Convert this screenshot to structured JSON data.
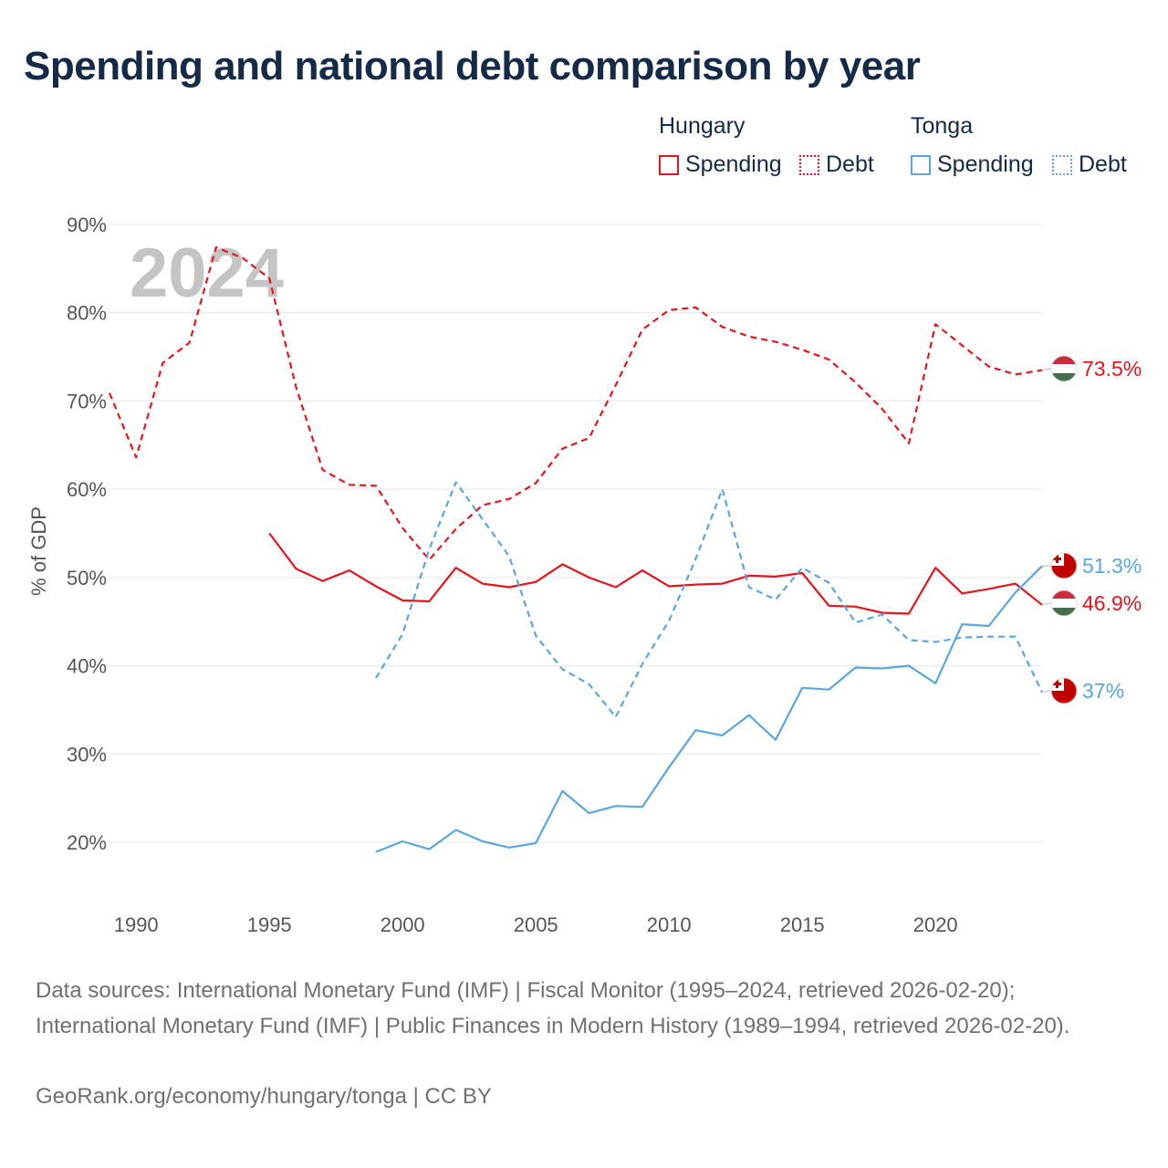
{
  "title": "Spending and national debt comparison by year",
  "legend": {
    "groups": [
      {
        "title": "Hungary",
        "spending_label": "Spending",
        "debt_label": "Debt",
        "color": "#e8141d"
      },
      {
        "title": "Tonga",
        "spending_label": "Spending",
        "debt_label": "Debt",
        "color": "#5aa6e0"
      }
    ]
  },
  "footer": {
    "sources": "Data sources: International Monetary Fund (IMF) | Fiscal Monitor (1995–2024, retrieved 2026-02-20); International Monetary Fund (IMF) | Public Finances in Modern History (1989–1994, retrieved 2026-02-20).",
    "credit": "GeoRank.org/economy/hungary/tonga | CC BY"
  },
  "chart_data": {
    "type": "line",
    "title": "Spending and national debt comparison by year",
    "year_label": "2024",
    "xlabel": "",
    "ylabel": "% of GDP",
    "xlim": [
      1989,
      2024
    ],
    "ylim": [
      13,
      90
    ],
    "x_ticks": [
      1990,
      1995,
      2000,
      2005,
      2010,
      2015,
      2020
    ],
    "y_ticks": [
      20,
      30,
      40,
      50,
      60,
      70,
      80,
      90
    ],
    "y_tick_labels": [
      "20%",
      "30%",
      "40%",
      "50%",
      "60%",
      "70%",
      "80%",
      "90%"
    ],
    "grid": true,
    "series": [
      {
        "name": "Hungary Debt",
        "country": "Hungary",
        "style": "dashed",
        "color": "#e8141d",
        "end_label": "73.5%",
        "x": [
          1989,
          1990,
          1991,
          1992,
          1993,
          1994,
          1995,
          1996,
          1997,
          1998,
          1999,
          2000,
          2001,
          2002,
          2003,
          2004,
          2005,
          2006,
          2007,
          2008,
          2009,
          2010,
          2011,
          2012,
          2013,
          2014,
          2015,
          2016,
          2017,
          2018,
          2019,
          2020,
          2021,
          2022,
          2023,
          2024
        ],
        "y": [
          70.9,
          63.6,
          74.3,
          76.6,
          87.4,
          86.2,
          83.9,
          71.6,
          62.2,
          60.5,
          60.4,
          55.6,
          52.0,
          55.5,
          58.2,
          58.9,
          60.7,
          64.6,
          65.8,
          71.8,
          78.1,
          80.3,
          80.6,
          78.4,
          77.3,
          76.7,
          75.8,
          74.7,
          72.1,
          69.1,
          65.2,
          78.7,
          76.3,
          73.9,
          73.0,
          73.5
        ]
      },
      {
        "name": "Hungary Spending",
        "country": "Hungary",
        "style": "solid",
        "color": "#e8141d",
        "end_label": "46.9%",
        "x": [
          1995,
          1996,
          1997,
          1998,
          1999,
          2000,
          2001,
          2002,
          2003,
          2004,
          2005,
          2006,
          2007,
          2008,
          2009,
          2010,
          2011,
          2012,
          2013,
          2014,
          2015,
          2016,
          2017,
          2018,
          2019,
          2020,
          2021,
          2022,
          2023,
          2024
        ],
        "y": [
          55.0,
          51.0,
          49.6,
          50.8,
          49.0,
          47.4,
          47.3,
          51.1,
          49.3,
          48.9,
          49.5,
          51.5,
          50.0,
          48.9,
          50.8,
          49.0,
          49.2,
          49.3,
          50.2,
          50.1,
          50.5,
          46.8,
          46.7,
          46.0,
          45.9,
          51.1,
          48.2,
          48.7,
          49.3,
          46.9
        ]
      },
      {
        "name": "Tonga Debt",
        "country": "Tonga",
        "style": "dashed",
        "color": "#5aa6e0",
        "end_label": "37%",
        "x": [
          1999,
          2000,
          2001,
          2002,
          2003,
          2004,
          2005,
          2006,
          2007,
          2008,
          2009,
          2010,
          2011,
          2012,
          2013,
          2014,
          2015,
          2016,
          2017,
          2018,
          2019,
          2020,
          2021,
          2022,
          2023,
          2024
        ],
        "y": [
          38.6,
          43.6,
          53.2,
          60.8,
          56.6,
          52.4,
          43.4,
          39.6,
          37.9,
          34.2,
          40.2,
          45.1,
          52.1,
          60.0,
          48.9,
          47.5,
          51.1,
          49.4,
          44.9,
          45.8,
          42.9,
          42.7,
          43.2,
          43.3,
          43.3,
          37.0
        ]
      },
      {
        "name": "Tonga Spending",
        "country": "Tonga",
        "style": "solid",
        "color": "#5aa6e0",
        "end_label": "51.3%",
        "x": [
          1999,
          2000,
          2001,
          2002,
          2003,
          2004,
          2005,
          2006,
          2007,
          2008,
          2009,
          2010,
          2011,
          2012,
          2013,
          2014,
          2015,
          2016,
          2017,
          2018,
          2019,
          2020,
          2021,
          2022,
          2023,
          2024
        ],
        "y": [
          18.9,
          20.1,
          19.2,
          21.4,
          20.1,
          19.4,
          19.9,
          25.8,
          23.3,
          24.1,
          24.0,
          28.5,
          32.7,
          32.1,
          34.4,
          31.6,
          37.5,
          37.3,
          39.8,
          39.7,
          40.0,
          38.0,
          44.7,
          44.5,
          48.3,
          51.3
        ]
      }
    ]
  }
}
